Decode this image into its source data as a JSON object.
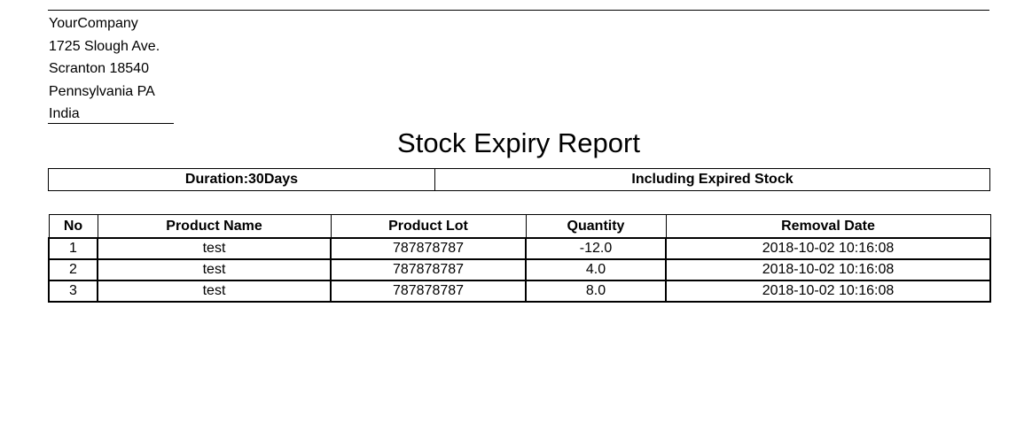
{
  "company": {
    "name": "YourCompany",
    "street": "1725 Slough Ave.",
    "city_zip": "Scranton 18540",
    "state": "Pennsylvania PA",
    "country": "India"
  },
  "report": {
    "title": "Stock Expiry Report",
    "duration": "Duration:30Days",
    "filter": "Including Expired Stock"
  },
  "table": {
    "headers": [
      "No",
      "Product Name",
      "Product Lot",
      "Quantity",
      "Removal Date"
    ],
    "rows": [
      [
        "1",
        "test",
        "787878787",
        "-12.0",
        "2018-10-02 10:16:08"
      ],
      [
        "2",
        "test",
        "787878787",
        "4.0",
        "2018-10-02 10:16:08"
      ],
      [
        "3",
        "test",
        "787878787",
        "8.0",
        "2018-10-02 10:16:08"
      ]
    ]
  }
}
